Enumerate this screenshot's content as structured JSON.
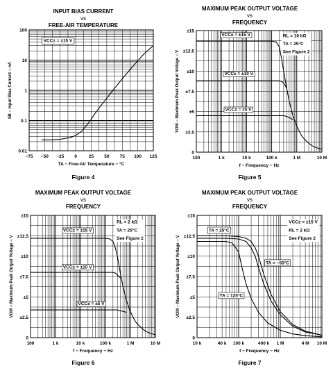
{
  "chart_data": [
    {
      "type": "line",
      "title": [
        "INPUT BIAS CURRENT",
        "vs",
        "FREE-AIR TEMPERATURE"
      ],
      "xlabel": "TA − Free-Air Temperature − °C",
      "ylabel": "IIB − Input Bias Current − nA",
      "xscale": "linear",
      "yscale": "log",
      "xlim": [
        -75,
        125
      ],
      "ylim": [
        0.01,
        100
      ],
      "xticks": [
        -75,
        -50,
        -25,
        0,
        25,
        50,
        75,
        100,
        125
      ],
      "xtick_labels": [
        "−75",
        "−50",
        "−25",
        "0",
        "25",
        "50",
        "75",
        "100",
        "125"
      ],
      "yticks": [
        0.01,
        0.1,
        1,
        10,
        100
      ],
      "ytick_labels": [
        "0.01",
        "0.1",
        "1",
        "10",
        "100"
      ],
      "grid": true,
      "figure_label": "Figure 4",
      "annotations": [
        {
          "text": "VCC± = ±15 V",
          "x": -52,
          "y": 40
        }
      ],
      "series": [
        {
          "label_x": null,
          "x": [
            -55,
            -40,
            -25,
            -10,
            0,
            10,
            20,
            25,
            30,
            40,
            50,
            60,
            70,
            80,
            90,
            100,
            110,
            125
          ],
          "values": [
            0.023,
            0.023,
            0.024,
            0.027,
            0.032,
            0.045,
            0.08,
            0.11,
            0.16,
            0.3,
            0.55,
            1.0,
            1.8,
            3.2,
            5.6,
            9.5,
            16,
            30
          ]
        }
      ]
    },
    {
      "type": "line",
      "title": [
        "MAXIMUM PEAK OUTPUT VOLTAGE",
        "vs",
        "FREQUENCY"
      ],
      "xlabel": "f − Frequency − Hz",
      "ylabel": "VOM − Maximum Peak Output Voltage − V",
      "xscale": "log",
      "yscale": "linear",
      "xlim": [
        100,
        10000000
      ],
      "ylim": [
        0,
        15
      ],
      "xticks": [
        100,
        1000,
        10000,
        100000,
        1000000,
        10000000
      ],
      "xtick_labels": [
        "100",
        "1 k",
        "10 k",
        "100 k",
        "1 M",
        "10 M"
      ],
      "yticks": [
        0,
        2.5,
        5,
        7.5,
        10,
        12.5,
        15
      ],
      "ytick_labels": [
        "0",
        "±2.5",
        "±5",
        "±7.5",
        "±10",
        "±12.5",
        "±15"
      ],
      "grid": true,
      "figure_label": "Figure 5",
      "annotations": [
        {
          "text": "RL = 10 kΩ",
          "x": 280000,
          "y": 14.2
        },
        {
          "text": "TA = 25°C",
          "x": 280000,
          "y": 13.2
        },
        {
          "text": "See Figure 2",
          "x": 280000,
          "y": 12.2
        }
      ],
      "series": [
        {
          "name": "VCC± = ±15 V",
          "label_x": 1000,
          "label_y": 14.3,
          "x": [
            100,
            10000,
            100000,
            150000,
            200000,
            250000,
            300000,
            400000,
            500000,
            700000,
            1000000,
            1500000,
            2000000,
            3000000,
            4000000,
            6000000,
            10000000
          ],
          "values": [
            13.7,
            13.7,
            13.7,
            13.6,
            13.0,
            11.5,
            10.0,
            7.8,
            6.3,
            4.5,
            3.2,
            2.1,
            1.6,
            1.1,
            0.8,
            0.55,
            0.35
          ]
        },
        {
          "name": "VCC± = ±10 V",
          "label_x": 1300,
          "label_y": 9.5,
          "x": [
            100,
            10000,
            100000,
            200000,
            260000,
            300000,
            350000,
            400000
          ],
          "values": [
            8.8,
            8.8,
            8.8,
            8.8,
            8.7,
            8.5,
            8.2,
            7.8
          ]
        },
        {
          "name": "VCC± = ±5 V",
          "label_x": 1400,
          "label_y": 5.1,
          "x": [
            100,
            10000,
            100000,
            300000,
            400000,
            550000,
            700000
          ],
          "values": [
            4.5,
            4.5,
            4.5,
            4.5,
            4.4,
            4.2,
            4.0
          ]
        }
      ]
    },
    {
      "type": "line",
      "title": [
        "MAXIMUM PEAK OUTPUT VOLTAGE",
        "vs",
        "FREQUENCY"
      ],
      "xlabel": "f − Frequency − Hz",
      "ylabel": "VOM − Maximum Peak Output Voltage − V",
      "xscale": "log",
      "yscale": "linear",
      "xlim": [
        100,
        10000000
      ],
      "ylim": [
        0,
        15
      ],
      "xticks": [
        100,
        1000,
        10000,
        100000,
        1000000,
        10000000
      ],
      "xtick_labels": [
        "100",
        "1 k",
        "10 k",
        "100 k",
        "1 M",
        "10 M"
      ],
      "yticks": [
        0,
        2.5,
        5,
        7.5,
        10,
        12.5,
        15
      ],
      "ytick_labels": [
        "0",
        "±2.5",
        "±5",
        "±7.5",
        "±10",
        "±12.5",
        "±15"
      ],
      "grid": true,
      "figure_label": "Figure 6",
      "annotations": [
        {
          "text": "RL = 2 kΩ",
          "x": 280000,
          "y": 14.0
        },
        {
          "text": "TA = 25°C",
          "x": 280000,
          "y": 13.0
        },
        {
          "text": "See Figure 2",
          "x": 280000,
          "y": 12.0
        }
      ],
      "series": [
        {
          "name": "VCC± = ±15 V",
          "label_x": 2000,
          "label_y": 13.0,
          "x": [
            100,
            10000,
            100000,
            150000,
            200000,
            250000,
            300000,
            400000,
            500000,
            700000,
            1000000,
            1500000,
            2000000,
            3000000,
            4000000,
            6000000,
            10000000
          ],
          "values": [
            12.2,
            12.2,
            12.2,
            12.1,
            11.8,
            11.0,
            10.0,
            7.8,
            6.3,
            4.5,
            3.2,
            2.1,
            1.6,
            1.1,
            0.8,
            0.55,
            0.35
          ]
        },
        {
          "name": "VCC± = ±10 V",
          "label_x": 2000,
          "label_y": 8.5,
          "x": [
            100,
            10000,
            100000,
            200000,
            260000,
            300000,
            350000,
            400000
          ],
          "values": [
            8.0,
            8.0,
            8.0,
            8.0,
            7.9,
            7.7,
            7.5,
            7.3
          ]
        },
        {
          "name": "VCC± = ±5 V",
          "label_x": 8000,
          "label_y": 4.0,
          "x": [
            100,
            10000,
            100000,
            300000,
            400000,
            550000,
            700000
          ],
          "values": [
            3.4,
            3.4,
            3.4,
            3.4,
            3.3,
            3.2,
            3.1
          ]
        }
      ]
    },
    {
      "type": "line",
      "title": [
        "MAXIMUM PEAK OUTPUT VOLTAGE",
        "vs",
        "FREQUENCY"
      ],
      "xlabel": "f − Frequency − Hz",
      "ylabel": "VOM − Maximum Peak Output Voltage − V",
      "xscale": "log",
      "yscale": "linear",
      "xlim": [
        10000,
        10000000
      ],
      "ylim": [
        0,
        15
      ],
      "xticks": [
        10000,
        40000,
        100000,
        400000,
        1000000,
        4000000,
        10000000
      ],
      "xtick_labels": [
        "10 k",
        "40 k",
        "100 k",
        "400 k",
        "1 M",
        "4 M",
        "10 M"
      ],
      "yticks": [
        0,
        2.5,
        5,
        7.5,
        10,
        12.5,
        15
      ],
      "ytick_labels": [
        "0",
        "±2.5",
        "±5",
        "±7.5",
        "±10",
        "±12.5",
        "±15"
      ],
      "grid": true,
      "figure_label": "Figure 7",
      "annotations": [
        {
          "text": "VCC± = ±15 V",
          "x": 1600000,
          "y": 14.0
        },
        {
          "text": "RL = 2 kΩ",
          "x": 1600000,
          "y": 13.0
        },
        {
          "text": "See Figure 2",
          "x": 1600000,
          "y": 12.0
        }
      ],
      "series": [
        {
          "name": "TA = 25°C",
          "label_x": 19000,
          "label_y": 13.0,
          "x": [
            10000,
            50000,
            100000,
            150000,
            200000,
            250000,
            300000,
            400000,
            600000,
            1000000,
            2000000,
            4000000,
            10000000
          ],
          "values": [
            12.2,
            12.2,
            12.1,
            11.8,
            11.0,
            10.0,
            8.6,
            6.6,
            4.5,
            2.8,
            1.4,
            0.7,
            0.3
          ]
        },
        {
          "name": "TA = −55°C",
          "label_x": 450000,
          "label_y": 9.0,
          "x": [
            10000,
            50000,
            100000,
            150000,
            200000,
            250000,
            300000,
            400000,
            600000,
            1000000,
            2000000,
            4000000,
            10000000
          ],
          "values": [
            12.5,
            12.5,
            12.4,
            12.2,
            11.8,
            11.0,
            10.0,
            7.8,
            5.3,
            3.2,
            1.6,
            0.8,
            0.3
          ]
        },
        {
          "name": "TA = 125°C",
          "label_x": 35000,
          "label_y": 5.0,
          "x": [
            10000,
            50000,
            70000,
            100000,
            120000,
            150000,
            200000,
            300000,
            500000,
            1000000,
            2000000,
            4000000,
            10000000
          ],
          "values": [
            11.8,
            11.8,
            11.6,
            10.5,
            8.6,
            6.6,
            4.8,
            3.1,
            1.8,
            0.9,
            0.45,
            0.25,
            0.1
          ]
        }
      ]
    }
  ]
}
